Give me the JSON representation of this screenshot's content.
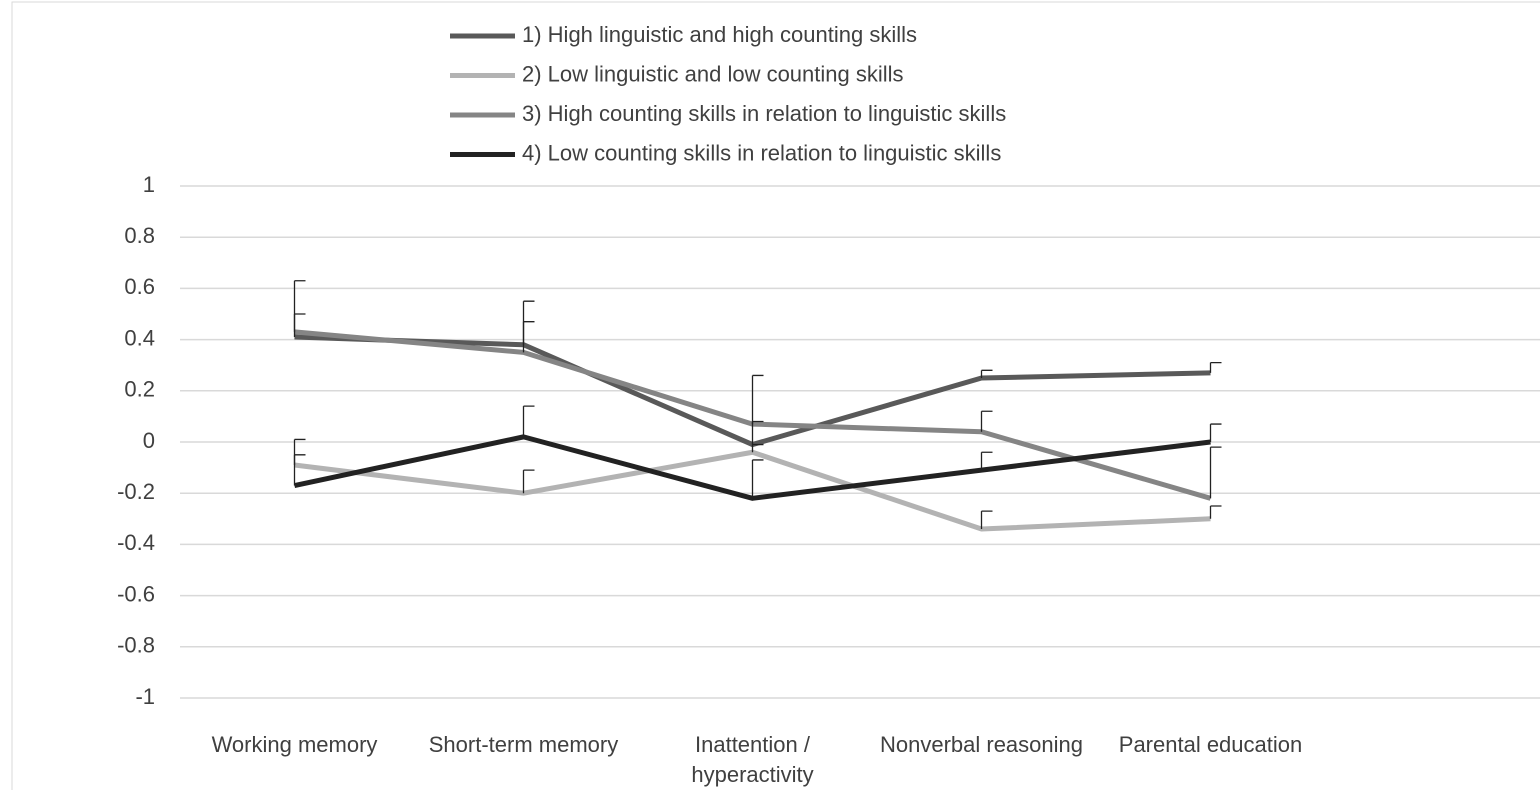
{
  "chart_data": {
    "type": "line",
    "categories": [
      "Working memory",
      "Short-term memory",
      "Inattention / hyperactivity",
      "Nonverbal reasoning",
      "Parental education",
      null
    ],
    "series": [
      {
        "name": "1) High linguistic and high counting skills",
        "color": "#595959",
        "values": [
          0.41,
          0.38,
          -0.01,
          0.25,
          0.27,
          null
        ],
        "errors": [
          0.22,
          0.17,
          0.09,
          0.03,
          0.04,
          null
        ]
      },
      {
        "name": "2) Low linguistic and low counting skills",
        "color": "#b3b3b3",
        "values": [
          -0.09,
          -0.2,
          -0.04,
          -0.34,
          -0.3,
          null
        ],
        "errors": [
          0.1,
          0.09,
          0.03,
          0.07,
          0.05,
          null
        ]
      },
      {
        "name": "3) High counting skills in relation to linguistic skills",
        "color": "#858585",
        "values": [
          0.43,
          0.35,
          0.07,
          0.04,
          -0.22,
          null
        ],
        "errors": [
          0.07,
          0.12,
          0.19,
          0.08,
          0.2,
          null
        ]
      },
      {
        "name": "4) Low counting skills in relation to linguistic skills",
        "color": "#222222",
        "values": [
          -0.17,
          0.02,
          -0.22,
          -0.11,
          0,
          null
        ],
        "errors": [
          0.12,
          0.12,
          0.15,
          0.07,
          0.07,
          null
        ]
      }
    ],
    "ylim": [
      -1,
      1
    ],
    "yticks": [
      -1,
      -0.8,
      -0.6,
      -0.4,
      -0.2,
      0,
      0.2,
      0.4,
      0.6,
      0.8,
      1
    ],
    "grid": true,
    "legend": "top"
  }
}
